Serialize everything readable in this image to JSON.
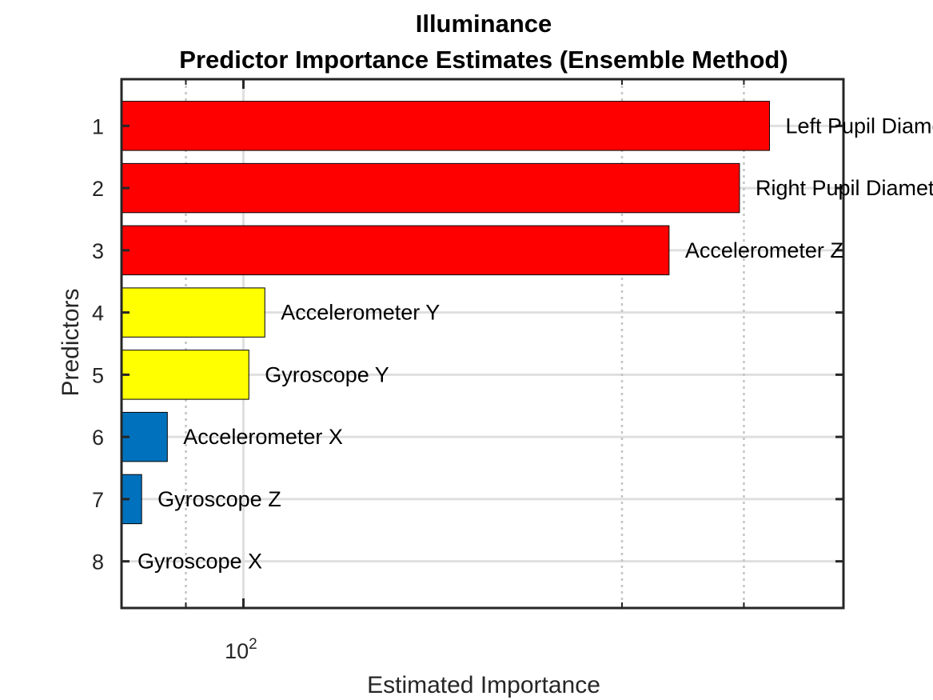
{
  "chart_data": {
    "type": "bar",
    "orientation": "horizontal",
    "title": [
      "Illuminance",
      "Predictor Importance Estimates (Ensemble Method)"
    ],
    "xlabel": "Estimated Importance",
    "ylabel": "Predictors",
    "x_scale": "log",
    "xlim": [
      80,
      300
    ],
    "x_tick_label": "10",
    "x_tick_label_exponent": "2",
    "x_tick_value": 100,
    "x_minor_ticks": [
      80,
      90,
      200,
      250,
      300
    ],
    "grid": true,
    "categories": [
      "1",
      "2",
      "3",
      "4",
      "5",
      "6",
      "7",
      "8"
    ],
    "bars": [
      {
        "label": "Left Pupil Diameter",
        "value": 262,
        "color": "#ff0000"
      },
      {
        "label": "Right Pupil Diameter",
        "value": 248,
        "color": "#ff0000"
      },
      {
        "label": "Accelerometer Z",
        "value": 218,
        "color": "#ff0000"
      },
      {
        "label": "Accelerometer Y",
        "value": 104,
        "color": "#ffff00"
      },
      {
        "label": "Gyroscope Y",
        "value": 101,
        "color": "#ffff00"
      },
      {
        "label": "Accelerometer X",
        "value": 87,
        "color": "#0072bd"
      },
      {
        "label": "Gyroscope Z",
        "value": 83,
        "color": "#0072bd"
      },
      {
        "label": "Gyroscope X",
        "value": 80,
        "color": "#0072bd"
      }
    ]
  }
}
